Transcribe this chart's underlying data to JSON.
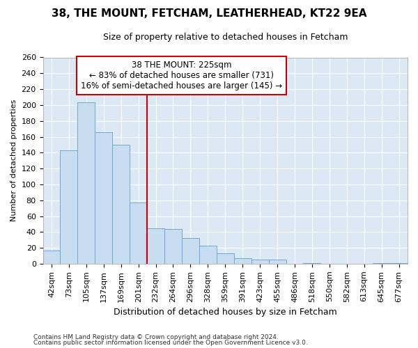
{
  "title1": "38, THE MOUNT, FETCHAM, LEATHERHEAD, KT22 9EA",
  "title2": "Size of property relative to detached houses in Fetcham",
  "xlabel": "Distribution of detached houses by size in Fetcham",
  "ylabel": "Number of detached properties",
  "bar_color": "#c9ddf0",
  "bar_edge_color": "#6fa8d4",
  "background_color": "#dce9f5",
  "grid_color": "#ffffff",
  "fig_background": "#ffffff",
  "x_labels": [
    "42sqm",
    "73sqm",
    "105sqm",
    "137sqm",
    "169sqm",
    "201sqm",
    "232sqm",
    "264sqm",
    "296sqm",
    "328sqm",
    "359sqm",
    "391sqm",
    "423sqm",
    "455sqm",
    "486sqm",
    "518sqm",
    "550sqm",
    "582sqm",
    "613sqm",
    "645sqm",
    "677sqm"
  ],
  "bar_heights": [
    17,
    143,
    203,
    166,
    150,
    77,
    45,
    44,
    32,
    23,
    13,
    7,
    5,
    5,
    0,
    1,
    0,
    0,
    0,
    1,
    1
  ],
  "n_bars": 21,
  "vline_pos": 6,
  "vline_color": "#cc0000",
  "annotation_text": "38 THE MOUNT: 225sqm\n← 83% of detached houses are smaller (731)\n16% of semi-detached houses are larger (145) →",
  "annotation_box_color": "#ffffff",
  "annotation_box_edge": "#cc0000",
  "footnote1": "Contains HM Land Registry data © Crown copyright and database right 2024.",
  "footnote2": "Contains public sector information licensed under the Open Government Licence v3.0.",
  "ylim": [
    0,
    260
  ],
  "yticks": [
    0,
    20,
    40,
    60,
    80,
    100,
    120,
    140,
    160,
    180,
    200,
    220,
    240,
    260
  ],
  "title1_fontsize": 11,
  "title2_fontsize": 9,
  "xlabel_fontsize": 9,
  "ylabel_fontsize": 8,
  "tick_fontsize": 8,
  "annot_fontsize": 8.5,
  "footnote_fontsize": 6.5
}
